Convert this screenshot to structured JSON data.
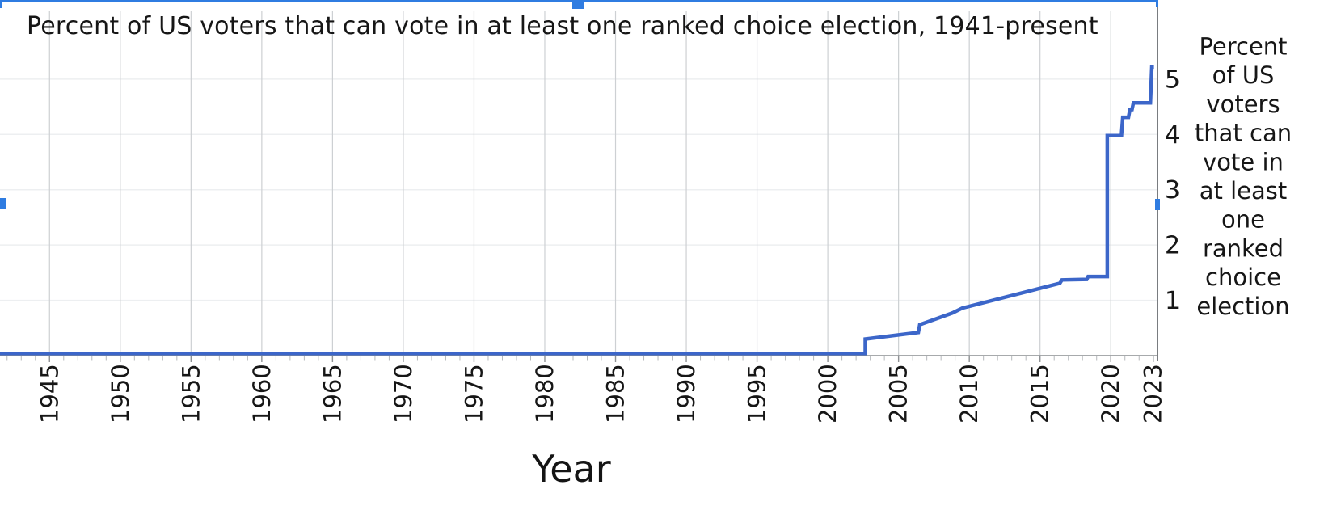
{
  "window": {
    "description": "chart image selected inside an editor, blue selection border and resize handles visible"
  },
  "selection": {
    "color": "#2f7ce1",
    "handles": [
      "top-left-corner",
      "top-center",
      "top-right-corner",
      "left-middle",
      "right-middle"
    ]
  },
  "chart_data": {
    "type": "line",
    "title": "Percent of US voters that can vote in at least one ranked choice election, 1941-present",
    "xlabel": "Year",
    "ylabel": "Percent of US voters that can vote in at least one ranked choice election",
    "ylabel_wrapped_lines": [
      "Percent",
      "of US",
      "voters",
      "that can",
      "vote in",
      "at least",
      "one",
      "ranked",
      "choice",
      "election"
    ],
    "x_ticks": [
      1945,
      1950,
      1955,
      1960,
      1965,
      1970,
      1975,
      1980,
      1985,
      1990,
      1995,
      2000,
      2005,
      2010,
      2015,
      2020,
      2023
    ],
    "y_ticks": [
      1,
      2,
      3,
      4,
      5
    ],
    "xlim": [
      1941.5,
      2023.3
    ],
    "ylim": [
      0,
      6.43
    ],
    "grid": "on",
    "legend": "none",
    "y_axis_side": "right",
    "x_tick_label_rotation": 90,
    "minor_ticks_x_every": 1,
    "line_color": "#3c66c9",
    "points": [
      [
        1941.45,
        0.04
      ],
      [
        2002.65,
        0.04
      ],
      [
        2002.65,
        0.3
      ],
      [
        2006.4,
        0.42
      ],
      [
        2006.5,
        0.56
      ],
      [
        2008.8,
        0.77
      ],
      [
        2009.5,
        0.86
      ],
      [
        2016.4,
        1.31
      ],
      [
        2016.55,
        1.37
      ],
      [
        2018.3,
        1.38
      ],
      [
        2018.4,
        1.43
      ],
      [
        2019.75,
        1.43
      ],
      [
        2019.75,
        3.98
      ],
      [
        2020.75,
        3.98
      ],
      [
        2020.85,
        4.31
      ],
      [
        2021.25,
        4.31
      ],
      [
        2021.35,
        4.45
      ],
      [
        2021.5,
        4.45
      ],
      [
        2021.6,
        4.57
      ],
      [
        2022.8,
        4.57
      ],
      [
        2022.9,
        5.22
      ],
      [
        2023.05,
        5.22
      ]
    ]
  },
  "colors": {
    "data_line": "#3c66c9",
    "selection_blue": "#2f7ce1",
    "vertical_gridline": "#cdd0d3",
    "horizontal_gridline": "#edeff1",
    "axis_line": "#8a8d90",
    "right_spine": "#797c80",
    "text": "#161616"
  }
}
